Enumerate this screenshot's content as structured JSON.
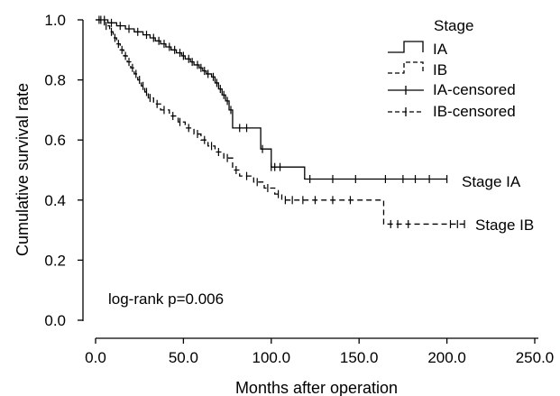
{
  "chart_data": {
    "type": "line",
    "title": "",
    "xlabel": "Months after operation",
    "ylabel": "Cumulative survival rate",
    "xlim": [
      0,
      250
    ],
    "ylim": [
      0,
      1.0
    ],
    "xticks": [
      "0.0",
      "50.0",
      "100.0",
      "150.0",
      "200.0",
      "250.0"
    ],
    "yticks": [
      "0.0",
      "0.2",
      "0.4",
      "0.6",
      "0.8",
      "1.0"
    ],
    "legend": {
      "title": "Stage",
      "entries": [
        "IA",
        "IB",
        "IA-censored",
        "IB-censored"
      ],
      "placement": "top-right"
    },
    "annotation": "log-rank p=0.006",
    "series": [
      {
        "name": "IA",
        "curve_label": "Stage IA",
        "color": "#000000",
        "style": "solid",
        "steps": [
          [
            0,
            1.0
          ],
          [
            7,
            0.99
          ],
          [
            12,
            0.98
          ],
          [
            17,
            0.97
          ],
          [
            22,
            0.96
          ],
          [
            27,
            0.95
          ],
          [
            31,
            0.94
          ],
          [
            34,
            0.93
          ],
          [
            37,
            0.92
          ],
          [
            40,
            0.91
          ],
          [
            43,
            0.9
          ],
          [
            46,
            0.89
          ],
          [
            49,
            0.88
          ],
          [
            51,
            0.87
          ],
          [
            54,
            0.86
          ],
          [
            56,
            0.85
          ],
          [
            59,
            0.84
          ],
          [
            61,
            0.83
          ],
          [
            63,
            0.82
          ],
          [
            66,
            0.81
          ],
          [
            68,
            0.79
          ],
          [
            70,
            0.77
          ],
          [
            72,
            0.75
          ],
          [
            74,
            0.73
          ],
          [
            76,
            0.7
          ],
          [
            78,
            0.64
          ],
          [
            94,
            0.57
          ],
          [
            100,
            0.51
          ],
          [
            119,
            0.47
          ],
          [
            200,
            0.47
          ]
        ],
        "censored_x": [
          2,
          5,
          9,
          14,
          19,
          24,
          29,
          33,
          36,
          39,
          42,
          45,
          48,
          50,
          53,
          55,
          58,
          60,
          62,
          64,
          67,
          69,
          71,
          73,
          75,
          77,
          82,
          86,
          95,
          100,
          102,
          105,
          122,
          135,
          148,
          165,
          175,
          182,
          190,
          200
        ]
      },
      {
        "name": "IB",
        "curve_label": "Stage IB",
        "color": "#000000",
        "style": "dashed",
        "steps": [
          [
            0,
            1.0
          ],
          [
            5,
            0.98
          ],
          [
            8,
            0.96
          ],
          [
            10,
            0.94
          ],
          [
            12,
            0.92
          ],
          [
            14,
            0.9
          ],
          [
            16,
            0.88
          ],
          [
            18,
            0.86
          ],
          [
            20,
            0.84
          ],
          [
            22,
            0.82
          ],
          [
            24,
            0.8
          ],
          [
            26,
            0.78
          ],
          [
            28,
            0.76
          ],
          [
            30,
            0.74
          ],
          [
            33,
            0.72
          ],
          [
            37,
            0.7
          ],
          [
            42,
            0.68
          ],
          [
            47,
            0.66
          ],
          [
            51,
            0.64
          ],
          [
            56,
            0.62
          ],
          [
            60,
            0.6
          ],
          [
            64,
            0.58
          ],
          [
            68,
            0.56
          ],
          [
            73,
            0.54
          ],
          [
            78,
            0.5
          ],
          [
            82,
            0.48
          ],
          [
            90,
            0.46
          ],
          [
            96,
            0.44
          ],
          [
            102,
            0.42
          ],
          [
            106,
            0.4
          ],
          [
            164,
            0.32
          ],
          [
            210,
            0.32
          ]
        ],
        "censored_x": [
          3,
          6,
          9,
          11,
          13,
          15,
          17,
          19,
          21,
          23,
          25,
          27,
          29,
          31,
          35,
          39,
          44,
          48,
          53,
          58,
          62,
          66,
          70,
          75,
          80,
          86,
          92,
          98,
          104,
          108,
          112,
          118,
          125,
          135,
          145,
          168,
          172,
          178,
          202,
          206,
          210
        ]
      }
    ]
  }
}
